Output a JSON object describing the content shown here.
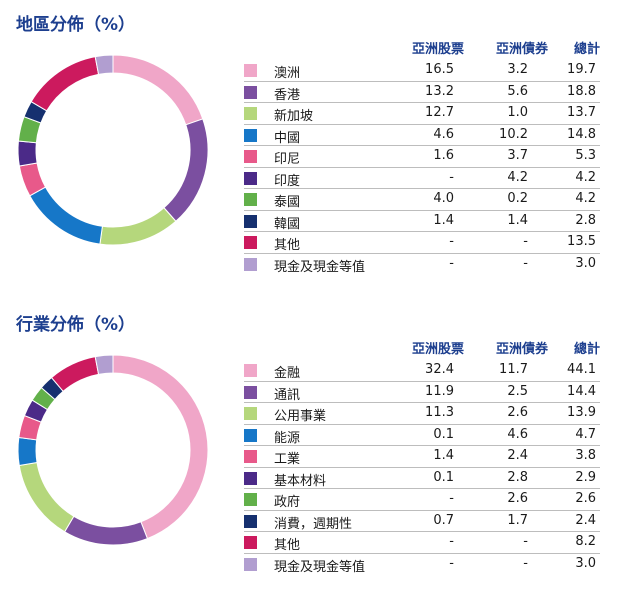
{
  "columns": [
    "亞洲股票",
    "亞洲債券",
    "總計"
  ],
  "chart_data": [
    {
      "type": "pie",
      "title": "地區分佈（%）",
      "categories": [
        "澳洲",
        "香港",
        "新加坡",
        "中國",
        "印尼",
        "印度",
        "泰國",
        "韓國",
        "其他",
        "現金及現金等值"
      ],
      "colors": [
        "#f0a6c8",
        "#7b4fa0",
        "#b5d77c",
        "#1677c8",
        "#e8598a",
        "#4b2a88",
        "#62b04a",
        "#16306f",
        "#cc1a5e",
        "#b19ed0"
      ],
      "series": [
        {
          "name": "亞洲股票",
          "values": [
            "16.5",
            "13.2",
            "12.7",
            "4.6",
            "1.6",
            "-",
            "4.0",
            "1.4",
            "-",
            "-"
          ]
        },
        {
          "name": "亞洲債券",
          "values": [
            "3.2",
            "5.6",
            "1.0",
            "10.2",
            "3.7",
            "4.2",
            "0.2",
            "1.4",
            "-",
            "-"
          ]
        },
        {
          "name": "總計",
          "values": [
            "19.7",
            "18.8",
            "13.7",
            "14.8",
            "5.3",
            "4.2",
            "4.2",
            "2.8",
            "13.5",
            "3.0"
          ]
        }
      ]
    },
    {
      "type": "pie",
      "title": "行業分佈（%）",
      "categories": [
        "金融",
        "通訊",
        "公用事業",
        "能源",
        "工業",
        "基本材料",
        "政府",
        "消費，週期性",
        "其他",
        "現金及現金等值"
      ],
      "colors": [
        "#f0a6c8",
        "#7b4fa0",
        "#b5d77c",
        "#1677c8",
        "#e8598a",
        "#4b2a88",
        "#62b04a",
        "#16306f",
        "#cc1a5e",
        "#b19ed0"
      ],
      "series": [
        {
          "name": "亞洲股票",
          "values": [
            "32.4",
            "11.9",
            "11.3",
            "0.1",
            "1.4",
            "0.1",
            "-",
            "0.7",
            "-",
            "-"
          ]
        },
        {
          "name": "亞洲債券",
          "values": [
            "11.7",
            "2.5",
            "2.6",
            "4.6",
            "2.4",
            "2.8",
            "2.6",
            "1.7",
            "-",
            "-"
          ]
        },
        {
          "name": "總計",
          "values": [
            "44.1",
            "14.4",
            "13.9",
            "4.7",
            "3.8",
            "2.9",
            "2.6",
            "2.4",
            "8.2",
            "3.0"
          ]
        }
      ]
    }
  ]
}
